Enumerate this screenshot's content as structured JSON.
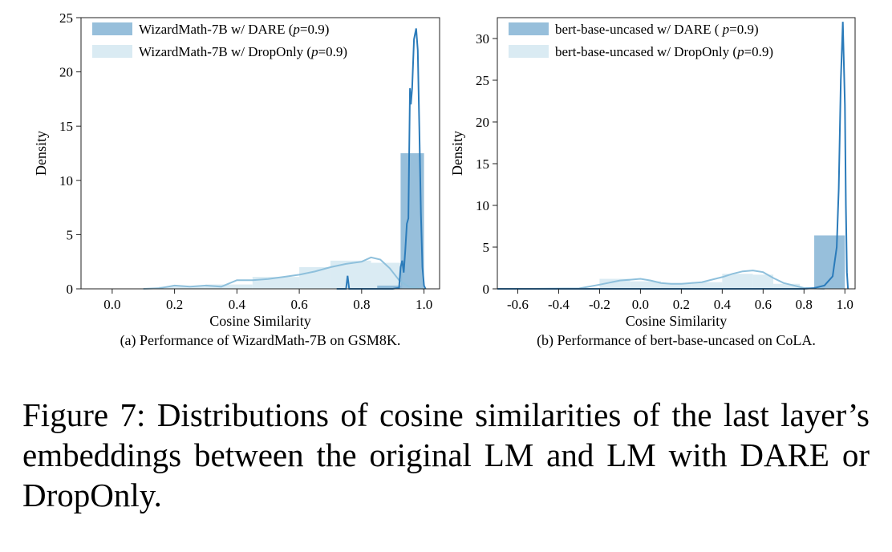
{
  "caption": {
    "label": "Figure 7:",
    "text": "Distributions of cosine similarities of the last layer’s embeddings between the original LM and LM with DARE or DropOnly."
  },
  "colors": {
    "dare_fill": "#74a9cf",
    "dare_line": "#2b7bba",
    "droponly_fill": "#d3e7f1",
    "droponly_line": "#8ec0dc"
  },
  "chart_data": [
    {
      "type": "histogram",
      "subcaption": "(a) Performance of WizardMath-7B on GSM8K.",
      "xlabel": "Cosine Similarity",
      "ylabel": "Density",
      "xlim": [
        -0.1,
        1.05
      ],
      "ylim": [
        0,
        25
      ],
      "xticks": [
        0.0,
        0.2,
        0.4,
        0.6,
        0.8,
        1.0
      ],
      "xtick_labels": [
        "0.0",
        "0.2",
        "0.4",
        "0.6",
        "0.8",
        "1.0"
      ],
      "yticks": [
        0,
        5,
        10,
        15,
        20,
        25
      ],
      "ytick_labels": [
        "0",
        "5",
        "10",
        "15",
        "20",
        "25"
      ],
      "legend_position": "top-left",
      "series": [
        {
          "name": "WizardMath-7B w/ DARE (p=0.9)",
          "legend_prefix": "WizardMath-7B w/ DARE (",
          "legend_italic": "p",
          "legend_suffix": "=0.9)",
          "style": "dare",
          "bins": [
            [
              0.85,
              0.925,
              0.3
            ],
            [
              0.925,
              1.0,
              12.5
            ]
          ],
          "kde": [
            [
              0.72,
              0
            ],
            [
              0.75,
              0
            ],
            [
              0.755,
              1.2
            ],
            [
              0.76,
              0
            ],
            [
              0.9,
              0
            ],
            [
              0.92,
              0.1
            ],
            [
              0.925,
              2.0
            ],
            [
              0.93,
              2.6
            ],
            [
              0.935,
              1.5
            ],
            [
              0.94,
              3.5
            ],
            [
              0.945,
              6.0
            ],
            [
              0.95,
              6.5
            ],
            [
              0.955,
              18.5
            ],
            [
              0.958,
              17.0
            ],
            [
              0.962,
              18.5
            ],
            [
              0.968,
              23.0
            ],
            [
              0.975,
              24.0
            ],
            [
              0.98,
              22.0
            ],
            [
              0.985,
              15.0
            ],
            [
              0.99,
              7.0
            ],
            [
              0.995,
              2.0
            ],
            [
              1.0,
              0.3
            ],
            [
              1.005,
              0
            ]
          ]
        },
        {
          "name": "WizardMath-7B w/ DropOnly (p=0.9)",
          "legend_prefix": "WizardMath-7B w/ DropOnly (",
          "legend_italic": "p",
          "legend_suffix": "=0.9)",
          "style": "droponly",
          "bins": [
            [
              0.15,
              0.3,
              0.2
            ],
            [
              0.3,
              0.45,
              0.4
            ],
            [
              0.45,
              0.6,
              1.1
            ],
            [
              0.6,
              0.7,
              2.0
            ],
            [
              0.7,
              0.83,
              2.6
            ],
            [
              0.83,
              0.93,
              2.4
            ]
          ],
          "kde": [
            [
              0.1,
              0
            ],
            [
              0.15,
              0.05
            ],
            [
              0.2,
              0.3
            ],
            [
              0.25,
              0.2
            ],
            [
              0.3,
              0.3
            ],
            [
              0.35,
              0.2
            ],
            [
              0.4,
              0.8
            ],
            [
              0.45,
              0.8
            ],
            [
              0.5,
              0.9
            ],
            [
              0.55,
              1.1
            ],
            [
              0.6,
              1.3
            ],
            [
              0.65,
              1.6
            ],
            [
              0.7,
              2.0
            ],
            [
              0.75,
              2.3
            ],
            [
              0.8,
              2.5
            ],
            [
              0.83,
              2.9
            ],
            [
              0.86,
              2.7
            ],
            [
              0.89,
              1.9
            ],
            [
              0.92,
              0.8
            ],
            [
              0.95,
              0.2
            ],
            [
              1.0,
              0
            ]
          ]
        }
      ]
    },
    {
      "type": "histogram",
      "subcaption": "(b) Performance of bert-base-uncased on CoLA.",
      "xlabel": "Cosine Similarity",
      "ylabel": "Density",
      "xlim": [
        -0.7,
        1.05
      ],
      "ylim": [
        0,
        32.5
      ],
      "xticks": [
        -0.6,
        -0.4,
        -0.2,
        0.0,
        0.2,
        0.4,
        0.6,
        0.8,
        1.0
      ],
      "xtick_labels": [
        "-0.6",
        "-0.4",
        "-0.2",
        "0.0",
        "0.2",
        "0.4",
        "0.6",
        "0.8",
        "1.0"
      ],
      "yticks": [
        0,
        5,
        10,
        15,
        20,
        25,
        30
      ],
      "ytick_labels": [
        "0",
        "5",
        "10",
        "15",
        "20",
        "25",
        "30"
      ],
      "legend_position": "top-left",
      "series": [
        {
          "name": "bert-base-uncased w/ DARE ( p=0.9)",
          "legend_prefix": "bert-base-uncased w/ DARE ( ",
          "legend_italic": "p",
          "legend_suffix": "=0.9)",
          "style": "dare",
          "bins": [
            [
              0.85,
              1.0,
              6.4
            ]
          ],
          "kde": [
            [
              -0.7,
              0
            ],
            [
              0.8,
              0
            ],
            [
              0.85,
              0.1
            ],
            [
              0.9,
              0.4
            ],
            [
              0.94,
              1.5
            ],
            [
              0.96,
              5.0
            ],
            [
              0.97,
              12.0
            ],
            [
              0.98,
              25.0
            ],
            [
              0.99,
              32.0
            ],
            [
              1.0,
              22.0
            ],
            [
              1.005,
              10.0
            ],
            [
              1.01,
              2.0
            ],
            [
              1.015,
              0
            ]
          ]
        },
        {
          "name": "bert-base-uncased w/ DropOnly (p=0.9)",
          "legend_prefix": "bert-base-uncased w/ DropOnly (",
          "legend_italic": "p",
          "legend_suffix": "=0.9)",
          "style": "droponly",
          "bins": [
            [
              -0.2,
              -0.05,
              1.2
            ],
            [
              -0.05,
              0.1,
              0.9
            ],
            [
              0.1,
              0.25,
              0.7
            ],
            [
              0.25,
              0.4,
              0.8
            ],
            [
              0.4,
              0.55,
              1.8
            ],
            [
              0.55,
              0.65,
              1.7
            ],
            [
              0.65,
              0.78,
              0.6
            ]
          ],
          "kde": [
            [
              -0.6,
              0
            ],
            [
              -0.3,
              0.05
            ],
            [
              -0.2,
              0.5
            ],
            [
              -0.1,
              1.0
            ],
            [
              -0.05,
              1.1
            ],
            [
              0.0,
              1.2
            ],
            [
              0.05,
              1.0
            ],
            [
              0.1,
              0.7
            ],
            [
              0.15,
              0.6
            ],
            [
              0.2,
              0.6
            ],
            [
              0.25,
              0.7
            ],
            [
              0.3,
              0.8
            ],
            [
              0.4,
              1.4
            ],
            [
              0.45,
              1.8
            ],
            [
              0.5,
              2.1
            ],
            [
              0.55,
              2.2
            ],
            [
              0.6,
              2.0
            ],
            [
              0.65,
              1.3
            ],
            [
              0.7,
              0.7
            ],
            [
              0.75,
              0.4
            ],
            [
              0.8,
              0.1
            ],
            [
              0.9,
              0
            ]
          ]
        }
      ]
    }
  ]
}
